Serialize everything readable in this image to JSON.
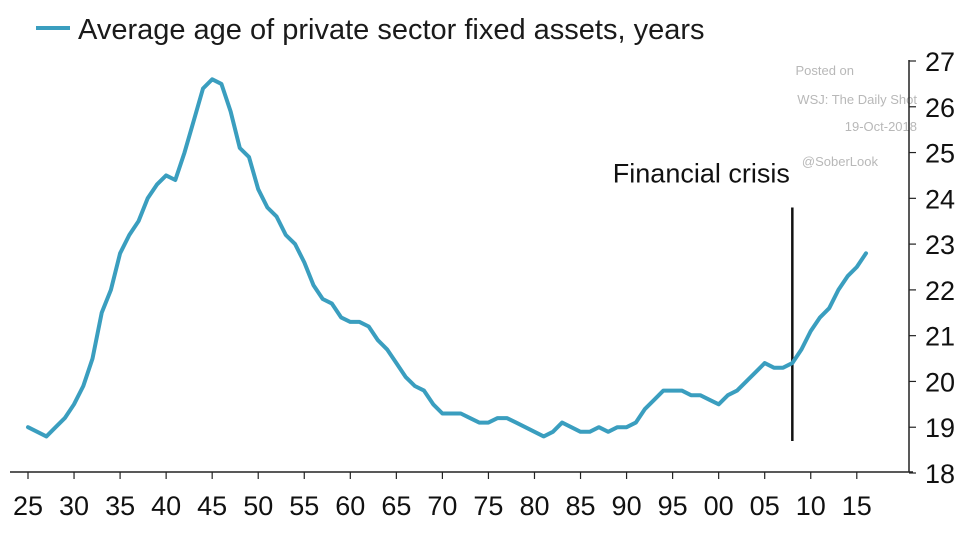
{
  "chart_data": {
    "type": "line",
    "title": "",
    "xlabel": "",
    "ylabel": "",
    "x": [
      1925,
      1926,
      1927,
      1928,
      1929,
      1930,
      1931,
      1932,
      1933,
      1934,
      1935,
      1936,
      1937,
      1938,
      1939,
      1940,
      1941,
      1942,
      1943,
      1944,
      1945,
      1946,
      1947,
      1948,
      1949,
      1950,
      1951,
      1952,
      1953,
      1954,
      1955,
      1956,
      1957,
      1958,
      1959,
      1960,
      1961,
      1962,
      1963,
      1964,
      1965,
      1966,
      1967,
      1968,
      1969,
      1970,
      1971,
      1972,
      1973,
      1974,
      1975,
      1976,
      1977,
      1978,
      1979,
      1980,
      1981,
      1982,
      1983,
      1984,
      1985,
      1986,
      1987,
      1988,
      1989,
      1990,
      1991,
      1992,
      1993,
      1994,
      1995,
      1996,
      1997,
      1998,
      1999,
      2000,
      2001,
      2002,
      2003,
      2004,
      2005,
      2006,
      2007,
      2008,
      2009,
      2010,
      2011,
      2012,
      2013,
      2014,
      2015,
      2016
    ],
    "series": [
      {
        "name": "Average age of private sector fixed assets, years",
        "color": "#3a9ebf",
        "values": [
          19.0,
          18.9,
          18.8,
          19.0,
          19.2,
          19.5,
          19.9,
          20.5,
          21.5,
          22.0,
          22.8,
          23.2,
          23.5,
          24.0,
          24.3,
          24.5,
          24.4,
          25.0,
          25.7,
          26.4,
          26.6,
          26.5,
          25.9,
          25.1,
          24.9,
          24.2,
          23.8,
          23.6,
          23.2,
          23.0,
          22.6,
          22.1,
          21.8,
          21.7,
          21.4,
          21.3,
          21.3,
          21.2,
          20.9,
          20.7,
          20.4,
          20.1,
          19.9,
          19.8,
          19.5,
          19.3,
          19.3,
          19.3,
          19.2,
          19.1,
          19.1,
          19.2,
          19.2,
          19.1,
          19.0,
          18.9,
          18.8,
          18.9,
          19.1,
          19.0,
          18.9,
          18.9,
          19.0,
          18.9,
          19.0,
          19.0,
          19.1,
          19.4,
          19.6,
          19.8,
          19.8,
          19.8,
          19.7,
          19.7,
          19.6,
          19.5,
          19.7,
          19.8,
          20.0,
          20.2,
          20.4,
          20.3,
          20.3,
          20.4,
          20.7,
          21.1,
          21.4,
          21.6,
          22.0,
          22.3,
          22.5,
          22.8
        ]
      }
    ],
    "xticks": {
      "values": [
        1925,
        1930,
        1935,
        1940,
        1945,
        1950,
        1955,
        1960,
        1965,
        1970,
        1975,
        1980,
        1985,
        1990,
        1995,
        2000,
        2005,
        2010,
        2015
      ],
      "labels": [
        "25",
        "30",
        "35",
        "40",
        "45",
        "50",
        "55",
        "60",
        "65",
        "70",
        "75",
        "80",
        "85",
        "90",
        "95",
        "00",
        "05",
        "10",
        "15"
      ]
    },
    "yticks": [
      18,
      19,
      20,
      21,
      22,
      23,
      24,
      25,
      26,
      27
    ],
    "xlim": [
      1925,
      2020
    ],
    "ylim": [
      18,
      27
    ],
    "y_axis_side": "right",
    "grid": false,
    "legend_position": "top-left",
    "annotations": [
      {
        "text": "Financial crisis",
        "x": 2008,
        "y_from": 18.7,
        "y_to": 23.8
      }
    ]
  },
  "watermark": {
    "line1": "Posted on",
    "line2": "WSJ: The Daily Shot",
    "line3": "19-Oct-2018",
    "line4": "@SoberLook"
  }
}
